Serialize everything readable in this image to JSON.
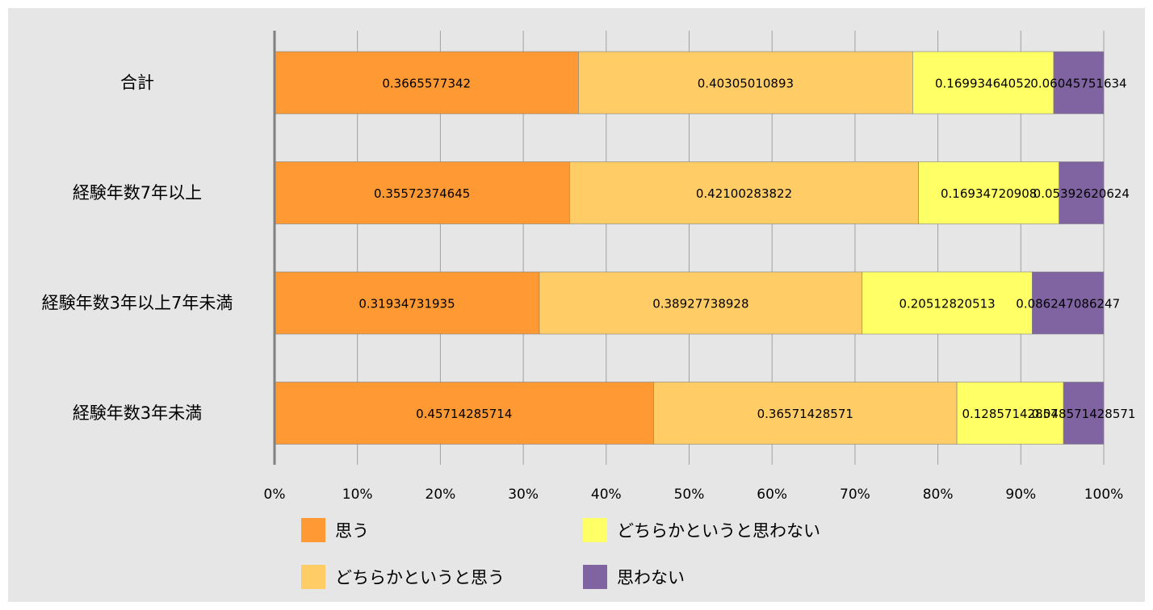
{
  "chart_data": {
    "type": "bar",
    "orientation": "horizontal",
    "stacked": "percent",
    "categories": [
      "合計",
      "経験年数7年以上",
      "経験年数3年以上7年未満",
      "経験年数3年未満"
    ],
    "series": [
      {
        "name": "思う",
        "color": "#ff9933",
        "values": [
          0.3665577342,
          0.35572374645,
          0.31934731935,
          0.45714285714
        ],
        "labels": [
          "0.3665577342",
          "0.35572374645",
          "0.31934731935",
          "0.45714285714"
        ]
      },
      {
        "name": "どちらかというと思う",
        "color": "#ffcc66",
        "values": [
          0.40305010893,
          0.42100283822,
          0.38927738928,
          0.36571428571
        ],
        "labels": [
          "0.40305010893",
          "0.42100283822",
          "0.38927738928",
          "0.36571428571"
        ]
      },
      {
        "name": "どちらかというと思わない",
        "color": "#ffff66",
        "values": [
          0.16993464052,
          0.16934720908,
          0.20512820513,
          0.12857142857
        ],
        "labels": [
          "0.16993464052",
          "0.16934720908",
          "0.20512820513",
          "0.12857142857"
        ]
      },
      {
        "name": "思わない",
        "color": "#8064a2",
        "values": [
          0.06045751634,
          0.05392620624,
          0.086247086247,
          0.048571428571
        ],
        "labels": [
          "0.06045751634",
          "0.05392620624",
          "0.086247086247",
          "0.048571428571"
        ]
      }
    ],
    "xticks": [
      "0%",
      "10%",
      "20%",
      "30%",
      "40%",
      "50%",
      "60%",
      "70%",
      "80%",
      "90%",
      "100%"
    ],
    "xlim": [
      0,
      1
    ],
    "grid": true,
    "legend_position": "bottom"
  }
}
